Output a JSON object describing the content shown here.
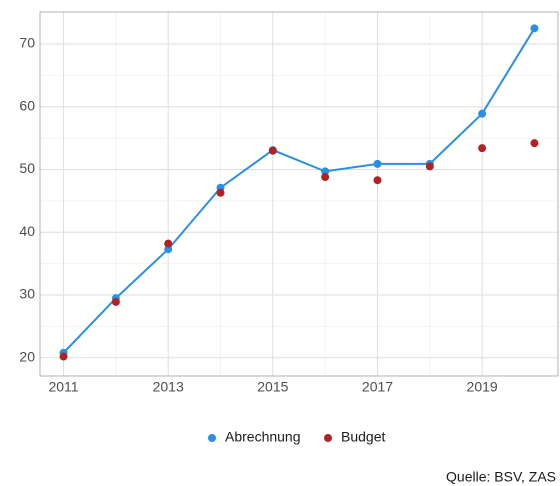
{
  "chart_data": {
    "type": "line",
    "x": [
      2011,
      2012,
      2013,
      2014,
      2015,
      2016,
      2017,
      2018,
      2019,
      2020
    ],
    "series": [
      {
        "name": "Abrechnung",
        "color": "#2b8fe6",
        "mode": "line+points",
        "values": [
          20.8,
          29.5,
          37.3,
          47.1,
          53.1,
          49.7,
          50.9,
          50.9,
          58.9,
          72.5
        ]
      },
      {
        "name": "Budget",
        "color": "#b22222",
        "mode": "points",
        "values": [
          20.2,
          28.9,
          38.2,
          46.3,
          53.0,
          48.8,
          48.3,
          50.5,
          53.4,
          54.2
        ]
      }
    ],
    "xlim": [
      2010.55,
      2020.45
    ],
    "xticks": [
      2011,
      2013,
      2015,
      2017,
      2019
    ],
    "ylim": [
      17.1,
      75.1
    ],
    "yticks": [
      20,
      30,
      40,
      50,
      60,
      70
    ],
    "grid": true,
    "legend": "bottom",
    "caption": "Quelle: BSV, ZAS"
  }
}
